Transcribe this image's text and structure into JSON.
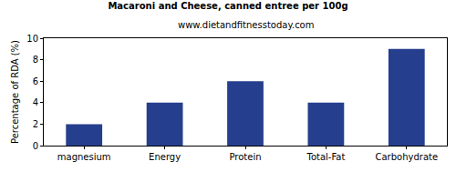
{
  "chart_data": {
    "type": "bar",
    "title": "Macaroni and Cheese, canned entree per 100g",
    "subtitle": "www.dietandfitnesstoday.com",
    "ylabel": "Percentage of RDA (%)",
    "categories": [
      "magnesium",
      "Energy",
      "Protein",
      "Total-Fat",
      "Carbohydrate"
    ],
    "values": [
      2,
      4,
      6,
      4,
      9
    ],
    "color": "#253f8e",
    "ylim": [
      0,
      10
    ],
    "yticks": [
      0,
      2,
      4,
      6,
      8,
      10
    ],
    "grid": false
  }
}
